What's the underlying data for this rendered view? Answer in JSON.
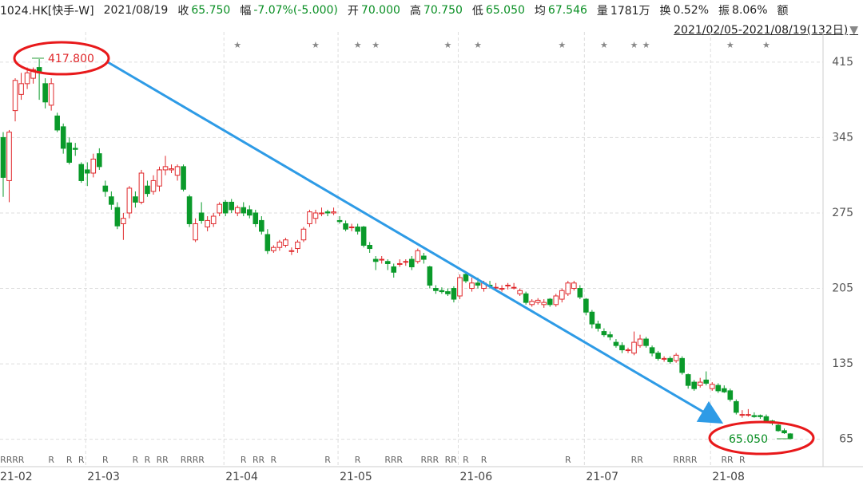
{
  "header": {
    "symbol": "1024.HK[快手-W]",
    "date": "2021/08/19",
    "close_label": "收",
    "close": "65.750",
    "change_label": "幅",
    "change": "-7.07%(-5.000)",
    "open_label": "开",
    "open": "70.000",
    "high_label": "高",
    "high": "70.750",
    "low_label": "低",
    "low": "65.050",
    "avg_label": "均",
    "avg": "67.546",
    "volume_label": "量",
    "volume": "1781万",
    "turnover_label": "换",
    "turnover": "0.52%",
    "amplitude_label": "振",
    "amplitude": "8.06%",
    "amount_label": "额",
    "range": "2021/02/05-2021/08/19(132日)",
    "dropdown": "▼"
  },
  "chart_data": {
    "type": "candlestick",
    "up_color": "#e0282b",
    "down_color": "#0a9a2a",
    "grid": true,
    "ylim": [
      47,
      443
    ],
    "yticks": [
      65,
      135,
      205,
      275,
      345,
      415
    ],
    "max_label": "417.800",
    "min_label": "65.050",
    "categories": [
      "21-02",
      null,
      null,
      null,
      null,
      null,
      null,
      null,
      null,
      null,
      null,
      null,
      null,
      null,
      "21-03",
      null,
      null,
      null,
      null,
      null,
      null,
      null,
      null,
      null,
      null,
      null,
      null,
      null,
      null,
      null,
      null,
      null,
      null,
      null,
      null,
      null,
      null,
      "21-04",
      null,
      null,
      null,
      null,
      null,
      null,
      null,
      null,
      null,
      null,
      null,
      null,
      null,
      null,
      null,
      null,
      null,
      null,
      "21-05",
      null,
      null,
      null,
      null,
      null,
      null,
      null,
      null,
      null,
      null,
      null,
      null,
      null,
      null,
      null,
      null,
      null,
      null,
      null,
      "21-06",
      null,
      null,
      null,
      null,
      null,
      null,
      null,
      null,
      null,
      null,
      null,
      null,
      null,
      null,
      null,
      null,
      null,
      null,
      null,
      null,
      "21-07",
      null,
      null,
      null,
      null,
      null,
      null,
      null,
      null,
      null,
      null,
      null,
      null,
      null,
      null,
      null,
      null,
      null,
      null,
      null,
      null,
      "21-08",
      null,
      null,
      null,
      null,
      null,
      null,
      null,
      null,
      null,
      null,
      null,
      null,
      null
    ],
    "open": [
      345,
      305,
      370,
      385,
      395,
      400,
      410,
      395,
      375,
      365,
      355,
      340,
      335,
      320,
      315,
      312,
      330,
      300,
      290,
      280,
      265,
      275,
      290,
      285,
      300,
      295,
      300,
      315,
      315,
      310,
      318,
      290,
      250,
      275,
      262,
      265,
      275,
      285,
      285,
      275,
      280,
      278,
      275,
      268,
      255,
      240,
      243,
      245,
      240,
      242,
      250,
      265,
      270,
      275,
      276,
      275,
      268,
      265,
      262,
      262,
      262,
      245,
      232,
      232,
      230,
      225,
      228,
      230,
      232,
      230,
      235,
      225,
      205,
      203,
      202,
      205,
      198,
      218,
      205,
      210,
      205,
      208,
      206,
      205,
      208,
      206,
      200,
      200,
      190,
      192,
      190,
      195,
      190,
      195,
      200,
      205,
      205,
      195,
      183,
      172,
      165,
      162,
      155,
      152,
      148,
      145,
      152,
      158,
      150,
      145,
      140,
      140,
      138,
      140,
      125,
      118,
      115,
      120,
      112,
      115,
      112,
      110,
      100,
      88,
      88,
      87,
      87,
      86,
      82,
      78,
      73,
      70
    ],
    "high": [
      350,
      352,
      400,
      405,
      410,
      410,
      417.8,
      400,
      400,
      368,
      358,
      345,
      340,
      322,
      322,
      330,
      335,
      305,
      295,
      285,
      275,
      300,
      295,
      315,
      305,
      310,
      318,
      328,
      320,
      320,
      320,
      292,
      270,
      285,
      272,
      275,
      285,
      287,
      288,
      282,
      285,
      282,
      278,
      272,
      260,
      245,
      250,
      252,
      243,
      250,
      262,
      278,
      278,
      280,
      278,
      280,
      272,
      268,
      265,
      265,
      263,
      248,
      235,
      235,
      232,
      228,
      232,
      232,
      235,
      242,
      238,
      226,
      208,
      206,
      205,
      207,
      218,
      220,
      215,
      215,
      212,
      212,
      210,
      208,
      210,
      210,
      205,
      202,
      195,
      196,
      195,
      196,
      200,
      205,
      212,
      212,
      208,
      196,
      185,
      175,
      168,
      165,
      158,
      155,
      150,
      165,
      162,
      160,
      152,
      147,
      142,
      142,
      145,
      142,
      126,
      120,
      122,
      128,
      118,
      117,
      115,
      112,
      102,
      92,
      93,
      90,
      88,
      88,
      83,
      79,
      75,
      70.75
    ],
    "low": [
      290,
      285,
      360,
      380,
      390,
      395,
      380,
      372,
      370,
      350,
      330,
      320,
      328,
      303,
      300,
      308,
      315,
      290,
      278,
      260,
      250,
      270,
      280,
      283,
      290,
      292,
      295,
      310,
      312,
      305,
      295,
      262,
      248,
      265,
      258,
      262,
      272,
      272,
      275,
      272,
      272,
      270,
      262,
      255,
      237,
      238,
      240,
      243,
      236,
      238,
      248,
      262,
      265,
      272,
      272,
      273,
      265,
      258,
      258,
      255,
      243,
      238,
      222,
      228,
      222,
      215,
      225,
      226,
      222,
      228,
      228,
      205,
      200,
      200,
      198,
      192,
      195,
      210,
      202,
      205,
      202,
      205,
      203,
      202,
      204,
      204,
      198,
      190,
      188,
      190,
      187,
      188,
      188,
      192,
      198,
      203,
      195,
      180,
      168,
      165,
      160,
      157,
      150,
      145,
      145,
      143,
      150,
      150,
      142,
      138,
      137,
      135,
      136,
      125,
      112,
      110,
      113,
      115,
      110,
      108,
      108,
      100,
      88,
      85,
      86,
      85,
      84,
      80,
      78,
      72,
      70,
      65.05
    ],
    "close": [
      308,
      350,
      398,
      395,
      405,
      408,
      405,
      378,
      395,
      352,
      335,
      322,
      334,
      305,
      312,
      325,
      318,
      295,
      283,
      263,
      270,
      298,
      285,
      312,
      293,
      305,
      315,
      318,
      316,
      318,
      297,
      265,
      265,
      268,
      268,
      272,
      283,
      275,
      278,
      280,
      275,
      273,
      265,
      258,
      240,
      243,
      248,
      250,
      240,
      248,
      260,
      276,
      275,
      275,
      275,
      276,
      267,
      260,
      262,
      258,
      245,
      242,
      230,
      232,
      228,
      220,
      228,
      230,
      225,
      240,
      232,
      208,
      203,
      202,
      200,
      195,
      215,
      212,
      210,
      208,
      210,
      207,
      206,
      205,
      208,
      206,
      203,
      192,
      193,
      194,
      192,
      190,
      198,
      203,
      210,
      210,
      197,
      183,
      172,
      168,
      162,
      160,
      152,
      148,
      148,
      155,
      158,
      152,
      145,
      140,
      140,
      137,
      143,
      127,
      115,
      112,
      118,
      117,
      116,
      110,
      109,
      102,
      90,
      88,
      88,
      86,
      86,
      82,
      80,
      73,
      71,
      65.75
    ],
    "top_flags": [
      null,
      null,
      null,
      null,
      null,
      null,
      null,
      null,
      null,
      null,
      null,
      null,
      null,
      null,
      null,
      null,
      null,
      null,
      null,
      null,
      null,
      null,
      null,
      null,
      null,
      null,
      null,
      null,
      null,
      null,
      null,
      null,
      null,
      null,
      null,
      null,
      null,
      null,
      null,
      "★",
      null,
      null,
      null,
      null,
      null,
      null,
      null,
      null,
      null,
      null,
      null,
      null,
      "★",
      null,
      null,
      null,
      null,
      null,
      null,
      "★",
      null,
      null,
      "★",
      null,
      null,
      null,
      null,
      null,
      null,
      null,
      null,
      null,
      null,
      null,
      "★",
      null,
      null,
      null,
      null,
      "★",
      null,
      null,
      null,
      null,
      null,
      null,
      null,
      null,
      null,
      null,
      null,
      null,
      null,
      "★",
      null,
      null,
      null,
      null,
      null,
      null,
      "★",
      null,
      null,
      null,
      null,
      "★",
      null,
      "★",
      null,
      null,
      null,
      null,
      null,
      null,
      null,
      null,
      null,
      null,
      null,
      null,
      null,
      "★",
      null,
      null,
      null,
      null,
      null,
      "★",
      null,
      null,
      null,
      null
    ],
    "bottom_flags": [
      "R",
      "R",
      "R",
      "R",
      null,
      null,
      null,
      null,
      "R",
      null,
      null,
      "R",
      null,
      "R",
      null,
      null,
      null,
      "R",
      null,
      null,
      null,
      null,
      "R",
      null,
      "R",
      null,
      "R",
      "R",
      null,
      null,
      "R",
      "R",
      "R",
      "R",
      null,
      null,
      null,
      null,
      null,
      null,
      "R",
      null,
      "R",
      "R",
      null,
      "R",
      null,
      null,
      null,
      null,
      null,
      null,
      null,
      null,
      "R",
      null,
      null,
      null,
      null,
      "R",
      null,
      null,
      null,
      null,
      "R",
      "R",
      "R",
      null,
      null,
      null,
      "R",
      "R",
      "R",
      null,
      "R",
      "R",
      null,
      "R",
      null,
      null,
      "R",
      null,
      null,
      null,
      null,
      null,
      null,
      null,
      null,
      null,
      null,
      null,
      null,
      null,
      "R",
      null,
      null,
      null,
      null,
      null,
      null,
      null,
      null,
      null,
      null,
      "R",
      "R",
      null,
      null,
      null,
      null,
      null,
      "R",
      "R",
      "R",
      "R",
      null,
      null,
      null,
      null,
      "R",
      "R",
      null,
      "R",
      null,
      null,
      null,
      null,
      null,
      null,
      null,
      null
    ]
  }
}
